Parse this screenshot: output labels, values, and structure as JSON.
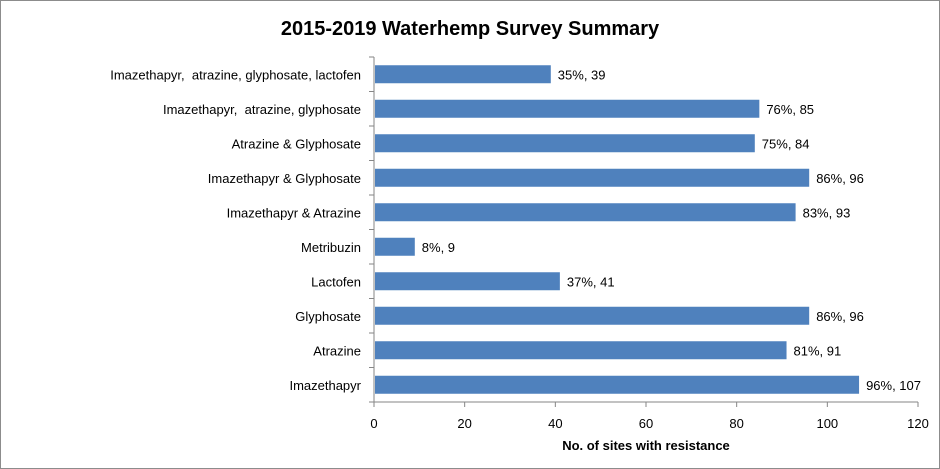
{
  "chart_data": {
    "type": "bar",
    "orientation": "horizontal",
    "title": "2015-2019 Waterhemp Survey Summary",
    "xlabel": "No. of sites with resistance",
    "ylabel": "",
    "xlim": [
      0,
      120
    ],
    "xticks": [
      0,
      20,
      40,
      60,
      80,
      100,
      120
    ],
    "grid": false,
    "bar_color": "#4f81bd",
    "categories": [
      "Imazethapyr,  atrazine, glyphosate, lactofen",
      "Imazethapyr,  atrazine, glyphosate",
      "Atrazine & Glyphosate",
      "Imazethapyr & Glyphosate",
      "Imazethapyr & Atrazine",
      "Metribuzin",
      "Lactofen",
      "Glyphosate",
      "Atrazine",
      "Imazethapyr"
    ],
    "values": [
      39,
      85,
      84,
      96,
      93,
      9,
      41,
      96,
      91,
      107
    ],
    "data_labels": [
      "35%, 39",
      "76%, 85",
      "75%, 84",
      "86%, 96",
      "83%, 93",
      "8%, 9",
      "37%, 41",
      "86%, 96",
      "81%, 91",
      "96%, 107"
    ]
  }
}
